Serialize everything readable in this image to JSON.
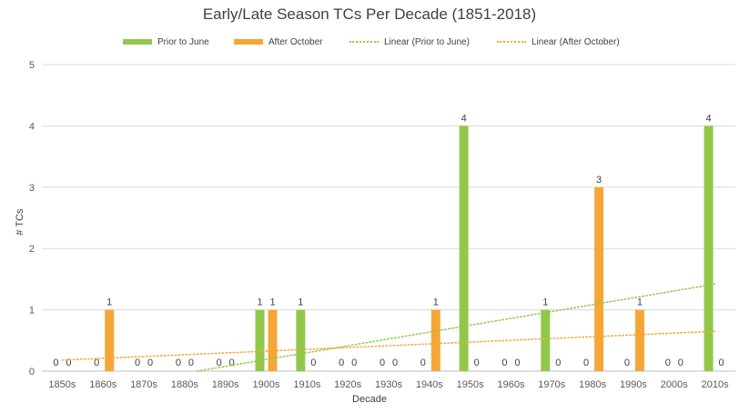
{
  "chart_data": {
    "type": "bar",
    "title": "Early/Late Season TCs Per Decade (1851-2018)",
    "xlabel": "Decade",
    "ylabel": "# TCs",
    "ylim": [
      0,
      5
    ],
    "yticks": [
      "0",
      "1",
      "2",
      "3",
      "4",
      "5"
    ],
    "grid": true,
    "legend_position": "top",
    "categories": [
      "1850s",
      "1860s",
      "1870s",
      "1880s",
      "1890s",
      "1900s",
      "1910s",
      "1920s",
      "1930s",
      "1940s",
      "1950s",
      "1960s",
      "1970s",
      "1980s",
      "1990s",
      "2000s",
      "2010s"
    ],
    "series": [
      {
        "name": "Prior to June",
        "color": "#92c84a",
        "values": [
          0,
          0,
          0,
          0,
          0,
          1,
          1,
          0,
          0,
          0,
          4,
          0,
          1,
          0,
          0,
          0,
          4
        ]
      },
      {
        "name": "After October",
        "color": "#f4a737",
        "values": [
          0,
          1,
          0,
          0,
          0,
          1,
          0,
          0,
          0,
          1,
          0,
          0,
          0,
          3,
          1,
          0,
          0
        ]
      }
    ],
    "trendlines": [
      {
        "name": "Linear (Prior to June)",
        "color": "#92c84a",
        "start": -0.37,
        "end": 1.42
      },
      {
        "name": "Linear (After October)",
        "color": "#f4a737",
        "start": 0.18,
        "end": 0.65
      }
    ]
  }
}
